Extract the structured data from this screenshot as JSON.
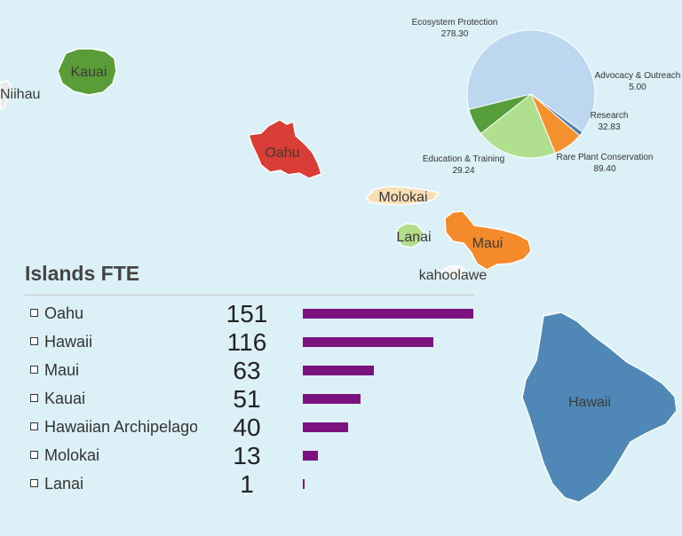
{
  "map": {
    "islands": [
      {
        "name": "Niihau",
        "color": "#e9e9e9"
      },
      {
        "name": "Kauai",
        "color": "#5a9c37"
      },
      {
        "name": "Oahu",
        "color": "#d93d36"
      },
      {
        "name": "Molokai",
        "color": "#f8deb5"
      },
      {
        "name": "Lanai",
        "color": "#b4dd8c"
      },
      {
        "name": "Maui",
        "color": "#f48a2a"
      },
      {
        "name": "kahoolawe",
        "color": "#f4f4f4"
      },
      {
        "name": "Hawaii",
        "color": "#4f88b6"
      }
    ]
  },
  "chart_data": [
    {
      "type": "pie",
      "slices": [
        {
          "label": "Ecosystem Protection",
          "value": 278.3,
          "value_text": "278.30",
          "color": "#bcd7ef"
        },
        {
          "label": "Advocacy & Outreach",
          "value": 5.0,
          "value_text": "5.00",
          "color": "#4f7eb0"
        },
        {
          "label": "Research",
          "value": 32.83,
          "value_text": "32.83",
          "color": "#f68f2e"
        },
        {
          "label": "Rare Plant Conservation",
          "value": 89.4,
          "value_text": "89.40",
          "color": "#b0df90"
        },
        {
          "label": "Education & Training",
          "value": 29.24,
          "value_text": "29.24",
          "color": "#569e39"
        }
      ]
    },
    {
      "type": "bar",
      "title": "Islands FTE",
      "categories": [
        "Oahu",
        "Hawaii",
        "Maui",
        "Kauai",
        "Hawaiian Archipelago",
        "Molokai",
        "Lanai"
      ],
      "values": [
        151,
        116,
        63,
        51,
        40,
        13,
        1
      ],
      "bar_color": "#7c1280"
    }
  ]
}
